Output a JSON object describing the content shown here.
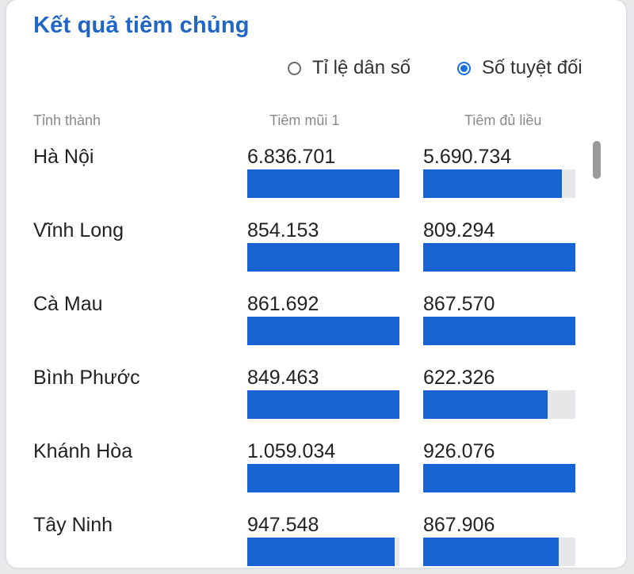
{
  "title": "Kết quả tiêm chủng",
  "modes": {
    "population_ratio": "Tỉ lệ dân số",
    "absolute": "Số tuyệt đối",
    "selected": "absolute"
  },
  "columns": {
    "province": "Tỉnh thành",
    "dose1": "Tiêm mũi 1",
    "full": "Tiêm đủ liều"
  },
  "colors": {
    "accent": "#1f66c8",
    "bar": "#1763d1",
    "track": "#e7e7e9"
  },
  "rows": [
    {
      "province": "Hà Nội",
      "dose1": "6.836.701",
      "full": "5.690.734",
      "dose1_pct": 100,
      "full_pct": 91
    },
    {
      "province": "Vĩnh Long",
      "dose1": "854.153",
      "full": "809.294",
      "dose1_pct": 100,
      "full_pct": 100
    },
    {
      "province": "Cà Mau",
      "dose1": "861.692",
      "full": "867.570",
      "dose1_pct": 100,
      "full_pct": 100
    },
    {
      "province": "Bình Phước",
      "dose1": "849.463",
      "full": "622.326",
      "dose1_pct": 100,
      "full_pct": 82
    },
    {
      "province": "Khánh Hòa",
      "dose1": "1.059.034",
      "full": "926.076",
      "dose1_pct": 100,
      "full_pct": 100
    },
    {
      "province": "Tây Ninh",
      "dose1": "947.548",
      "full": "867.906",
      "dose1_pct": 97,
      "full_pct": 89
    }
  ]
}
